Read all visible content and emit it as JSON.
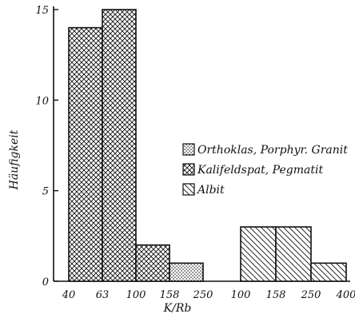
{
  "chart_data": {
    "type": "bar",
    "xlabel": "K/Rb",
    "ylabel": "Häufigkeit",
    "ylim": [
      0,
      15
    ],
    "yticks": [
      "0",
      "5",
      "10",
      "15"
    ],
    "yticks_values": [
      0,
      5,
      10,
      15
    ],
    "grid": false,
    "legend_position": "right",
    "groups": [
      {
        "x_ticks": [
          "40",
          "63",
          "100",
          "158",
          "250"
        ]
      },
      {
        "x_ticks": [
          "100",
          "158",
          "250",
          "400"
        ]
      }
    ],
    "series": [
      {
        "name": "Orthoklas, Porphyr. Granit",
        "pattern": "dots"
      },
      {
        "name": "Kalifeldspat, Pegmatit",
        "pattern": "crosshatch"
      },
      {
        "name": "Albit",
        "pattern": "diagonal"
      }
    ],
    "bars": [
      {
        "group": 0,
        "from": "40",
        "to": "63",
        "series": 1,
        "value": 14
      },
      {
        "group": 0,
        "from": "63",
        "to": "100",
        "series": 1,
        "value": 15
      },
      {
        "group": 0,
        "from": "100",
        "to": "158",
        "series": 1,
        "value": 2
      },
      {
        "group": 0,
        "from": "158",
        "to": "250",
        "series": 0,
        "value": 1
      },
      {
        "group": 1,
        "from": "100",
        "to": "158",
        "series": 2,
        "value": 3
      },
      {
        "group": 1,
        "from": "158",
        "to": "250",
        "series": 2,
        "value": 3
      },
      {
        "group": 1,
        "from": "250",
        "to": "400",
        "series": 2,
        "value": 1
      }
    ]
  }
}
